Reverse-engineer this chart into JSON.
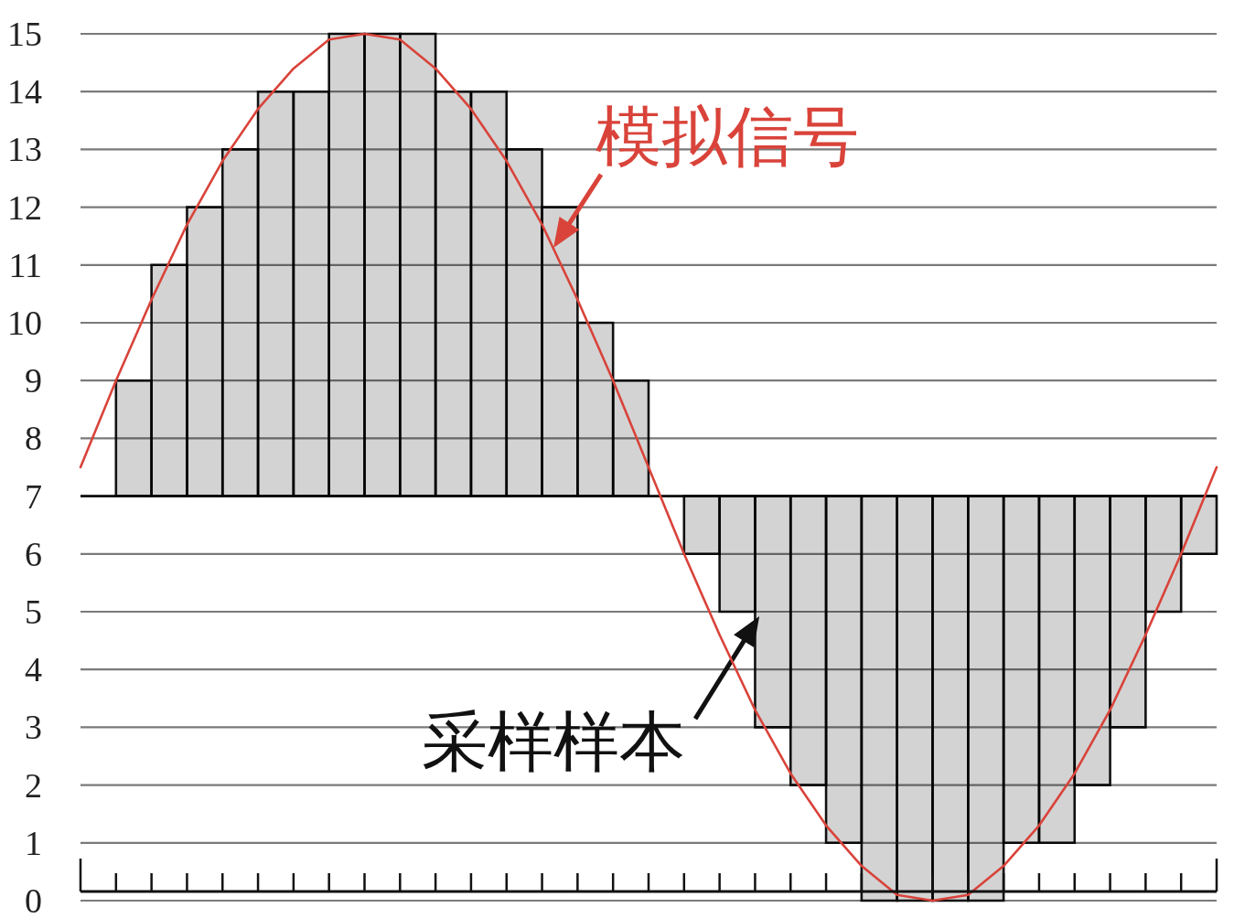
{
  "chart_data": [
    {
      "type": "bar",
      "ylim": [
        0,
        15
      ],
      "yticks": [
        0,
        1,
        2,
        3,
        4,
        5,
        6,
        7,
        8,
        9,
        10,
        11,
        12,
        13,
        14,
        15
      ],
      "grid": "y",
      "color": "#d3d3d3",
      "categories": [
        null,
        null,
        null,
        null,
        null,
        null,
        null,
        null,
        null,
        null,
        null,
        null,
        null,
        null,
        null,
        null,
        null,
        null,
        null,
        null,
        null,
        null,
        null,
        null,
        null,
        null,
        null,
        null,
        null,
        null,
        null,
        null
      ],
      "base": [
        7,
        7,
        7,
        7,
        7,
        7,
        7,
        7,
        7,
        7,
        7,
        7,
        7,
        7,
        7,
        7,
        7,
        7,
        7,
        7,
        7,
        7,
        7,
        7,
        7,
        7,
        7,
        7,
        7,
        7,
        7,
        7
      ],
      "values": [
        0,
        2,
        4,
        5,
        6,
        7,
        7,
        8,
        8,
        8,
        7,
        7,
        6,
        5,
        3,
        2,
        0,
        -1,
        -2,
        -4,
        -5,
        -6,
        -7,
        -7,
        -7,
        -7,
        -6,
        -6,
        -5,
        -4,
        -2,
        -1
      ],
      "annotations": [
        "采样样本"
      ]
    },
    {
      "type": "line",
      "ylim": [
        0,
        15
      ],
      "tick_labels": false,
      "color": "#d9433a",
      "categories": [
        null,
        null,
        null,
        null,
        null,
        null,
        null,
        null,
        null,
        null,
        null,
        null,
        null,
        null,
        null,
        null,
        null,
        null,
        null,
        null,
        null,
        null,
        null,
        null,
        null,
        null,
        null,
        null,
        null,
        null,
        null,
        null,
        null
      ],
      "values": [
        7.5,
        9.0,
        10.4,
        11.7,
        12.8,
        13.7,
        14.4,
        14.9,
        15,
        14.9,
        14.4,
        13.7,
        12.8,
        11.7,
        10.4,
        9.0,
        7.5,
        6.0,
        4.6,
        3.3,
        2.2,
        1.3,
        0.6,
        0.1,
        0,
        0.1,
        0.6,
        1.3,
        2.2,
        3.3,
        4.6,
        6.0,
        7.5
      ],
      "annotations": [
        "模拟信号"
      ]
    }
  ]
}
